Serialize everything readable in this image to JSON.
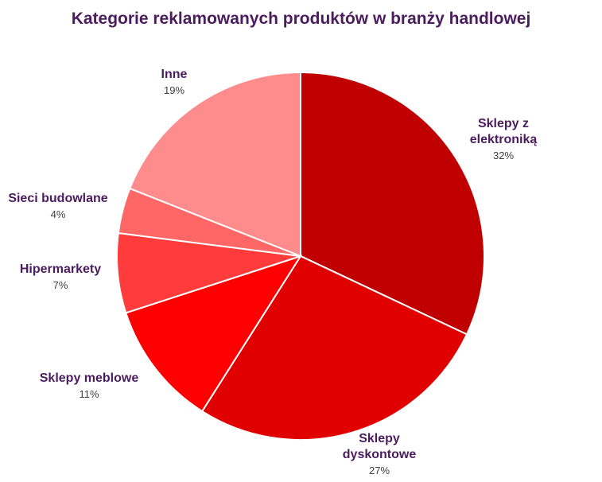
{
  "chart_data": {
    "type": "pie",
    "title": "Kategorie reklamowanych produktów w branży handlowej",
    "slices": [
      {
        "label": [
          "Sklepy z",
          "elektroniką"
        ],
        "value": 32,
        "value_label": "32%",
        "color": "#c00000"
      },
      {
        "label": [
          "Sklepy",
          "dyskontowe"
        ],
        "value": 27,
        "value_label": "27%",
        "color": "#e00000"
      },
      {
        "label": [
          "Sklepy meblowe"
        ],
        "value": 11,
        "value_label": "11%",
        "color": "#ff0000"
      },
      {
        "label": [
          "Hipermarkety"
        ],
        "value": 7,
        "value_label": "7%",
        "color": "#ff3b3b"
      },
      {
        "label": [
          "Sieci budowlane"
        ],
        "value": 4,
        "value_label": "4%",
        "color": "#ff6666"
      },
      {
        "label": [
          "Inne"
        ],
        "value": 19,
        "value_label": "19%",
        "color": "#ff8c8c"
      }
    ],
    "legend": "none",
    "data_labels": "outside"
  }
}
